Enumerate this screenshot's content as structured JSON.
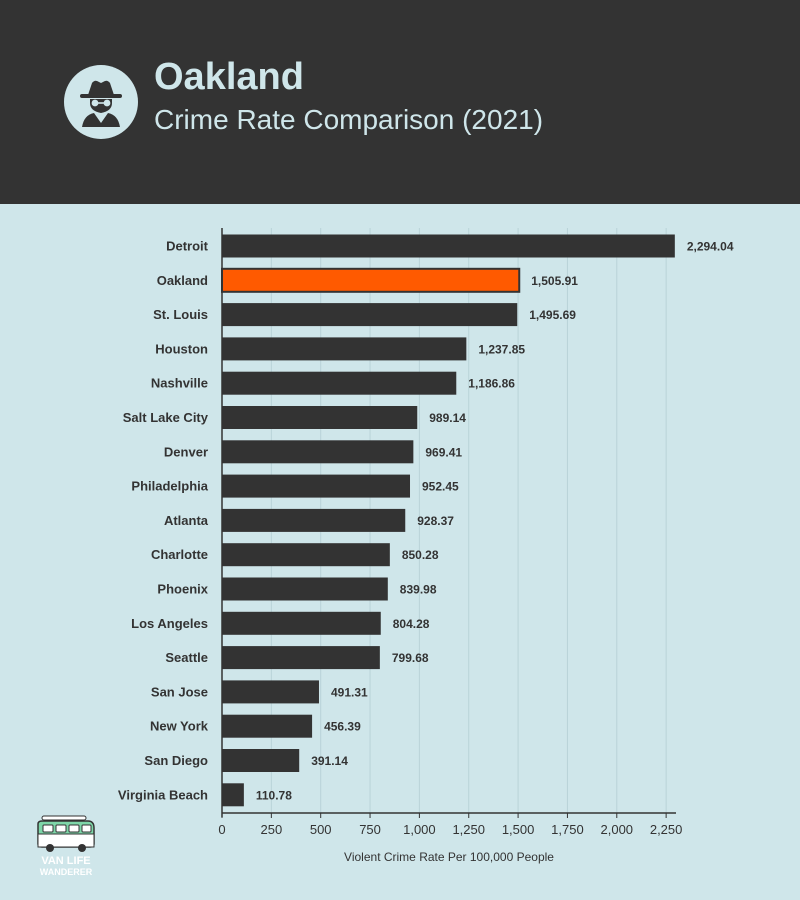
{
  "header": {
    "title": "Oakland",
    "subtitle": "Crime Rate Comparison (2021)",
    "icon": "spy-icon"
  },
  "brand": {
    "line1": "VAN LIFE",
    "line2": "WANDERER",
    "icon": "van-icon"
  },
  "colors": {
    "header_bg": "#333333",
    "page_bg": "#cfe6ea",
    "bar": "#333333",
    "highlight_bar": "#ff5a00",
    "text": "#333333"
  },
  "chart_data": {
    "type": "bar",
    "orientation": "horizontal",
    "categories": [
      "Detroit",
      "Oakland",
      "St. Louis",
      "Houston",
      "Nashville",
      "Salt Lake City",
      "Denver",
      "Philadelphia",
      "Atlanta",
      "Charlotte",
      "Phoenix",
      "Los Angeles",
      "Seattle",
      "San Jose",
      "New York",
      "San Diego",
      "Virginia Beach"
    ],
    "values": [
      2294.04,
      1505.91,
      1495.69,
      1237.85,
      1186.86,
      989.14,
      969.41,
      952.45,
      928.37,
      850.28,
      839.98,
      804.28,
      799.68,
      491.31,
      456.39,
      391.14,
      110.78
    ],
    "value_labels": [
      "2,294.04",
      "1,505.91",
      "1,495.69",
      "1,237.85",
      "1,186.86",
      "989.14",
      "969.41",
      "952.45",
      "928.37",
      "850.28",
      "839.98",
      "804.28",
      "799.68",
      "491.31",
      "456.39",
      "391.14",
      "110.78"
    ],
    "highlight": "Oakland",
    "xlabel": "Violent Crime Rate Per 100,000 People",
    "ylabel": "",
    "xlim": [
      0,
      2300
    ],
    "ticks": [
      0,
      250,
      500,
      750,
      1000,
      1250,
      1500,
      1750,
      2000,
      2250
    ],
    "tick_labels": [
      "0",
      "250",
      "500",
      "750",
      "1,000",
      "1,250",
      "1,500",
      "1,750",
      "2,000",
      "2,250"
    ],
    "grid": true
  }
}
